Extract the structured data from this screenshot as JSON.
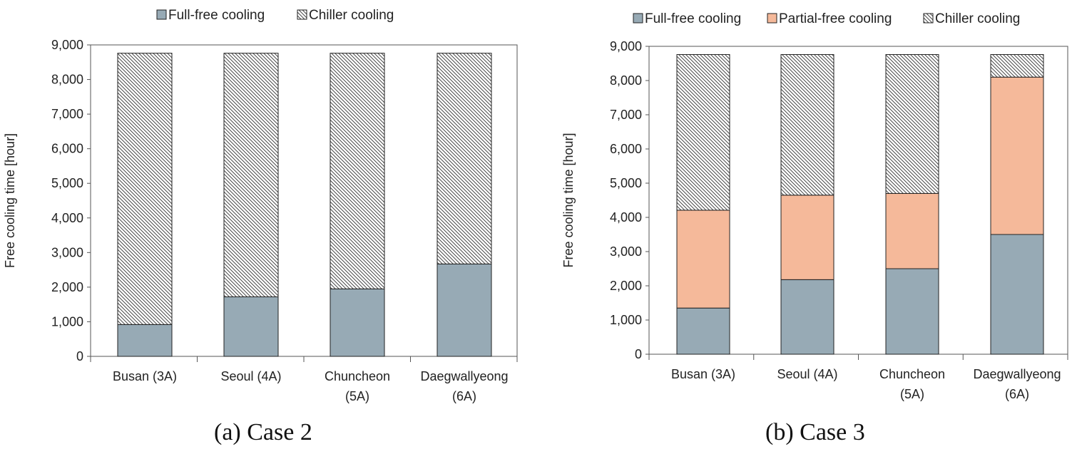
{
  "chart_data": [
    {
      "type": "bar",
      "stacked": true,
      "caption": "(a) Case 2",
      "ylabel": "Free cooling time [hour]",
      "ylim": [
        0,
        9000
      ],
      "yticks": [
        "0",
        "1,000",
        "2,000",
        "3,000",
        "4,000",
        "5,000",
        "6,000",
        "7,000",
        "8,000",
        "9,000"
      ],
      "categories": [
        [
          "Busan (3A)"
        ],
        [
          "Seoul (4A)"
        ],
        [
          "Chuncheon",
          "(5A)"
        ],
        [
          "Daegwallyeong",
          "(6A)"
        ]
      ],
      "series": [
        {
          "name": "Full-free cooling",
          "values": [
            920,
            1720,
            1950,
            2670
          ],
          "color": "#97aab5",
          "pattern": "solid"
        },
        {
          "name": "Chiller cooling",
          "values": [
            7840,
            7040,
            6810,
            6090
          ],
          "color": "#ffffff",
          "pattern": "hatch"
        }
      ],
      "legend_position": "top"
    },
    {
      "type": "bar",
      "stacked": true,
      "caption": "(b) Case 3",
      "ylabel": "Free cooling time [hour]",
      "ylim": [
        0,
        9000
      ],
      "yticks": [
        "0",
        "1,000",
        "2,000",
        "3,000",
        "4,000",
        "5,000",
        "6,000",
        "7,000",
        "8,000",
        "9,000"
      ],
      "categories": [
        [
          "Busan (3A)"
        ],
        [
          "Seoul (4A)"
        ],
        [
          "Chuncheon",
          "(5A)"
        ],
        [
          "Daegwallyeong",
          "(6A)"
        ]
      ],
      "series": [
        {
          "name": "Full-free cooling",
          "values": [
            1350,
            2180,
            2500,
            3500
          ],
          "color": "#97aab5",
          "pattern": "solid"
        },
        {
          "name": "Partial-free cooling",
          "values": [
            2860,
            2470,
            2200,
            4600
          ],
          "color": "#f5b99a",
          "pattern": "solid"
        },
        {
          "name": "Chiller cooling",
          "values": [
            4550,
            4110,
            4060,
            660
          ],
          "color": "#ffffff",
          "pattern": "hatch"
        }
      ],
      "legend_position": "top"
    }
  ]
}
